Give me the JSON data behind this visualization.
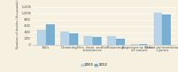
{
  "categories": [
    "Falls",
    "Drowning",
    "Fire, heat, and/or\nsubstances",
    "Poisonings",
    "Exposure to forces\nof nature",
    "Other unintentional\ninjuries"
  ],
  "values_2000": [
    480,
    430,
    265,
    265,
    30,
    1010
  ],
  "values_2012": [
    650,
    370,
    250,
    200,
    25,
    960
  ],
  "color_2000": "#b8d4e8",
  "color_2012": "#7aafd4",
  "ylabel": "Number of deaths (thousands)",
  "ylim": [
    0,
    1300
  ],
  "yticks": [
    0,
    200,
    400,
    600,
    800,
    1000,
    1200
  ],
  "ytick_labels": [
    "0",
    "200",
    "400",
    "600",
    "800",
    "1,000",
    "1,200"
  ],
  "legend_2000": "2000",
  "legend_2012": "2012",
  "bg_color": "#f5f0e0",
  "bar_width": 0.38,
  "label_fontsize": 2.5,
  "tick_fontsize": 2.8,
  "legend_fontsize": 2.8
}
